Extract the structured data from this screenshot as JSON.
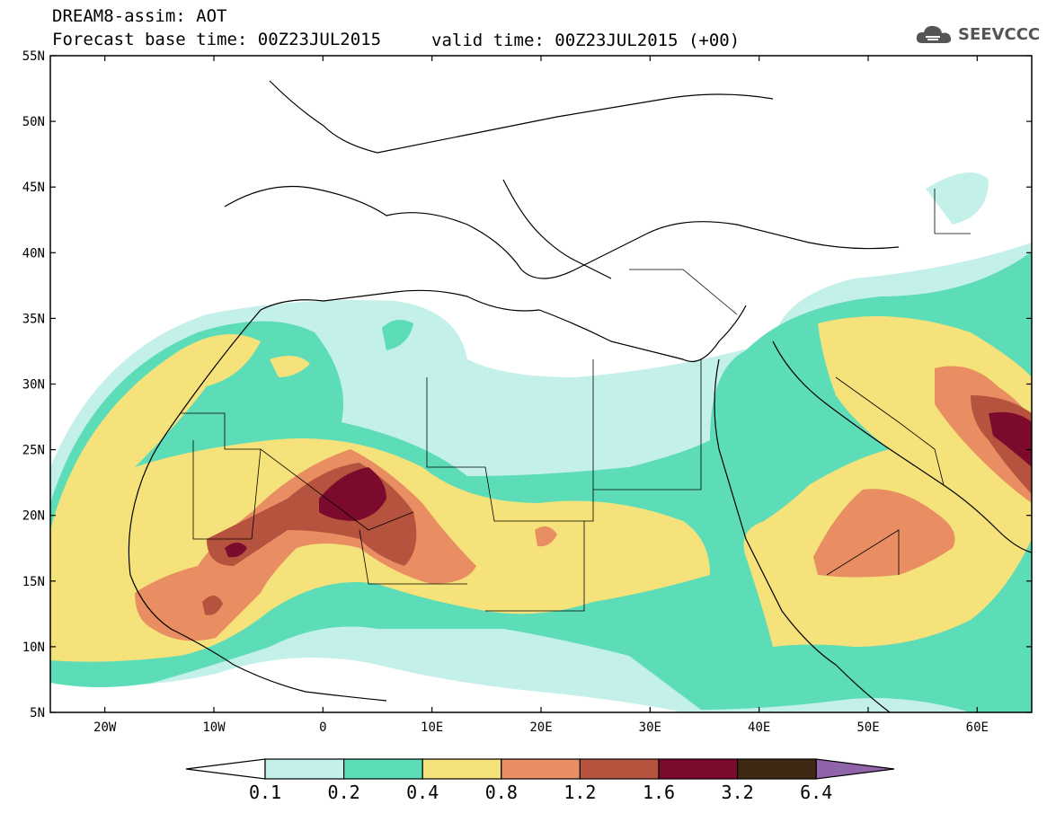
{
  "header": {
    "line1": "DREAM8-assim: AOT",
    "line2": "Forecast base time: 00Z23JUL2015",
    "valid": "valid time: 00Z23JUL2015 (+00)"
  },
  "logo": {
    "text": "SEEVCCC",
    "icon": "cloud-icon"
  },
  "map": {
    "lat_ticks": [
      "55N",
      "50N",
      "45N",
      "40N",
      "35N",
      "30N",
      "25N",
      "20N",
      "15N",
      "10N",
      "5N"
    ],
    "lon_ticks": [
      "20W",
      "10W",
      "0",
      "10E",
      "20E",
      "30E",
      "40E",
      "50E",
      "60E"
    ],
    "extent": {
      "lon": [
        -25,
        65
      ],
      "lat": [
        5,
        55
      ]
    }
  },
  "colorbar": {
    "labels": [
      "0.1",
      "0.2",
      "0.4",
      "0.8",
      "1.2",
      "1.6",
      "3.2",
      "6.4"
    ],
    "colors": [
      "#c4f0ea",
      "#5ddcb8",
      "#f5e27a",
      "#e88e62",
      "#b5533f",
      "#7c0a2c",
      "#3e2813",
      "#8f64a8"
    ]
  }
}
